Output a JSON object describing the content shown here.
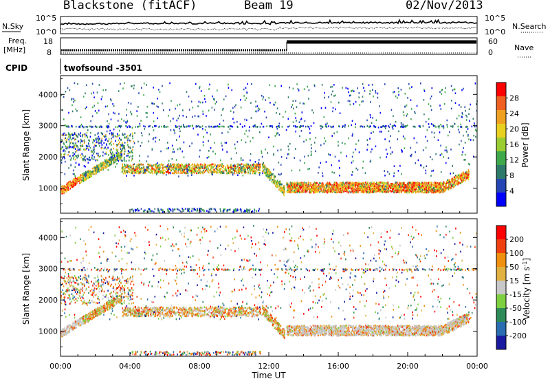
{
  "header": {
    "station": "Blackstone (fitACF)",
    "beam": "Beam 19",
    "date": "02/Nov/2013"
  },
  "status_panels": {
    "noise_left_label": "N.Sky",
    "noise_right_label": "N.Search",
    "noise_left_ticks": [
      "10^5",
      "10^0"
    ],
    "noise_right_ticks": [
      "10^5",
      "10^0"
    ],
    "freq_label_line1": "Freq.",
    "freq_label_line2": "[MHz]",
    "freq_ticks": [
      "18",
      "8"
    ],
    "nave_label": "Nave",
    "nave_ticks": [
      "60",
      "0"
    ],
    "cpid_label": "CPID",
    "cpid_value": "twofsound -3501"
  },
  "chart_data": [
    {
      "type": "heatmap",
      "name": "power",
      "ylabel": "Slant Range [km]",
      "xlabel": "",
      "yticks": [
        "1000",
        "2000",
        "3000",
        "4000"
      ],
      "ylim": [
        200,
        4600
      ],
      "xlim_hours": [
        0,
        24
      ],
      "colorbar": {
        "label": "Power [dB]",
        "ticks": [
          "28",
          "24",
          "20",
          "16",
          "12",
          "8",
          "4"
        ],
        "colors": [
          "#0000ff",
          "#2545b5",
          "#2e7a6a",
          "#3ea84a",
          "#9acd32",
          "#e8d020",
          "#f0a020",
          "#f06020",
          "#ff0000"
        ]
      },
      "features": {
        "strong_echo_band_km": {
          "hours": [
            13,
            23.5
          ],
          "range": [
            900,
            1300
          ]
        },
        "morning_band_km": {
          "hours": [
            0,
            3
          ],
          "range": [
            900,
            2400
          ]
        },
        "day_band_km": {
          "hours": [
            4,
            11.5
          ],
          "range": [
            1500,
            2000
          ]
        },
        "horizontal_line_km": 3000
      }
    },
    {
      "type": "heatmap",
      "name": "velocity",
      "ylabel": "Slant Range [km]",
      "xlabel": "Time UT",
      "yticks": [
        "1000",
        "2000",
        "3000",
        "4000"
      ],
      "xticks": [
        "00:00",
        "04:00",
        "08:00",
        "12:00",
        "16:00",
        "20:00",
        "00:00"
      ],
      "ylim": [
        200,
        4600
      ],
      "xlim_hours": [
        0,
        24
      ],
      "colorbar": {
        "label": "Velocity [m s-1]",
        "label_main": "Velocity [m s",
        "label_sup": "-1",
        "label_end": "]",
        "ticks": [
          "200",
          "100",
          "50",
          "15",
          "-15",
          "-50",
          "-100",
          "-200"
        ],
        "colors": [
          "#1a1aa0",
          "#2a6db0",
          "#2e8b57",
          "#7fd040",
          "#c8c8c8",
          "#e0b040",
          "#f09010",
          "#f04010",
          "#ff0000"
        ]
      }
    }
  ]
}
